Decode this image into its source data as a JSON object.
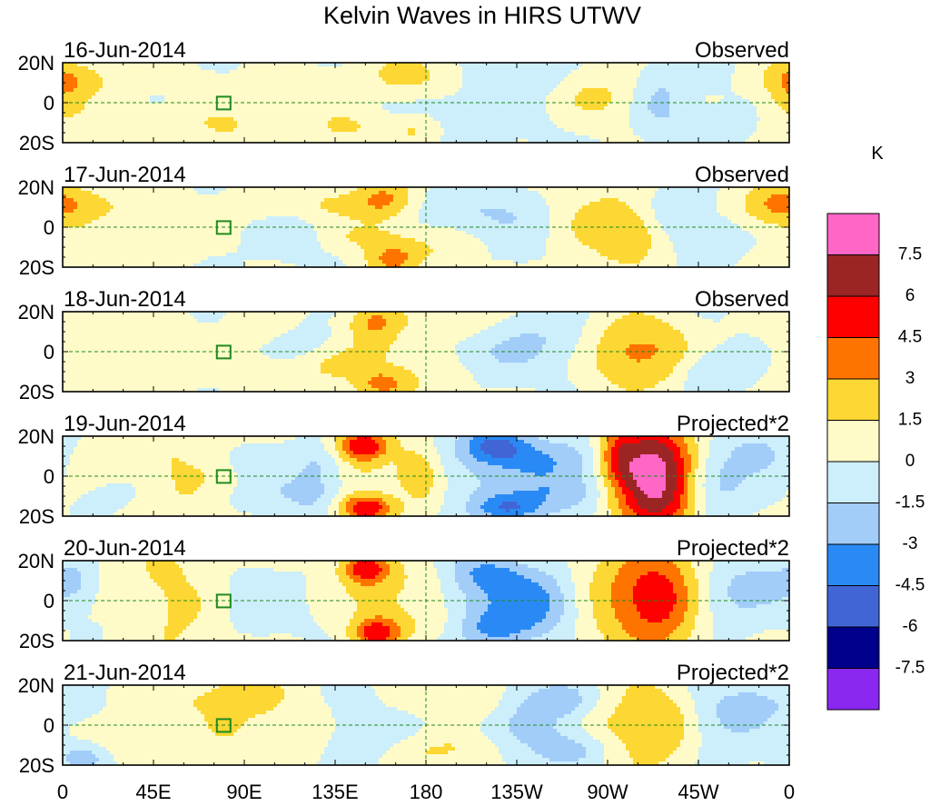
{
  "chart_data": {
    "type": "heatmap",
    "title": "Kelvin Waves in HIRS UTWV",
    "unit_label": "K",
    "x_ticks": [
      "0",
      "45E",
      "90E",
      "135E",
      "180",
      "135W",
      "90W",
      "45W",
      "0"
    ],
    "y_ticks": [
      "20N",
      "0",
      "20S"
    ],
    "y_range": [
      -20,
      20
    ],
    "x_range": [
      0,
      360
    ],
    "levels": [
      "7.5",
      "6",
      "4.5",
      "3",
      "1.5",
      "0",
      "-1.5",
      "-3",
      "-4.5",
      "-6",
      "-7.5"
    ],
    "colors": [
      "#ff66c6",
      "#9b2525",
      "#ff0000",
      "#ff7400",
      "#fdd733",
      "#fffbc8",
      "#cdeefb",
      "#a2cdf9",
      "#2a8af5",
      "#4066d6",
      "#00008c",
      "#8a28f0"
    ],
    "panels": [
      {
        "date": "16-Jun-2014",
        "label": "Observed",
        "features": [
          [
            170,
            13,
            15,
            8,
            2.2
          ],
          [
            175,
            -13,
            10,
            6,
            2.0
          ],
          [
            140,
            -12,
            14,
            6,
            1.8
          ],
          [
            115,
            5,
            14,
            7,
            1.2
          ],
          [
            360,
            10,
            12,
            8,
            2.0
          ],
          [
            80,
            -12,
            14,
            7,
            1.6
          ],
          [
            195,
            -6,
            24,
            9,
            -1.2
          ],
          [
            230,
            12,
            18,
            6,
            -1.0
          ],
          [
            240,
            2,
            16,
            12,
            -0.8
          ],
          [
            262,
            3,
            22,
            10,
            2.0
          ],
          [
            295,
            0,
            10,
            10,
            -2.2
          ],
          [
            312,
            15,
            12,
            7,
            -1.0
          ],
          [
            320,
            -12,
            12,
            6,
            -1.4
          ],
          [
            25,
            13,
            25,
            6,
            1.0
          ],
          [
            30,
            -10,
            22,
            7,
            0.9
          ],
          [
            0,
            0,
            8,
            18,
            1.0
          ]
        ]
      },
      {
        "date": "17-Jun-2014",
        "label": "Observed",
        "features": [
          [
            160,
            13,
            11,
            8,
            3.2
          ],
          [
            163,
            -16,
            10,
            6,
            3.0
          ],
          [
            135,
            12,
            14,
            6,
            1.6
          ],
          [
            150,
            -5,
            16,
            5,
            1.4
          ],
          [
            185,
            -10,
            16,
            7,
            1.2
          ],
          [
            200,
            8,
            22,
            8,
            -1.4
          ],
          [
            235,
            0,
            18,
            13,
            -1.3
          ],
          [
            262,
            2,
            22,
            15,
            2.2
          ],
          [
            282,
            -4,
            10,
            10,
            2.0
          ],
          [
            300,
            8,
            12,
            9,
            -1.4
          ],
          [
            320,
            -5,
            12,
            8,
            -1.2
          ],
          [
            348,
            10,
            12,
            8,
            1.8
          ],
          [
            360,
            12,
            10,
            8,
            1.6
          ],
          [
            20,
            12,
            22,
            8,
            1.4
          ],
          [
            25,
            -12,
            22,
            7,
            1.2
          ],
          [
            100,
            14,
            12,
            7,
            1.0
          ],
          [
            115,
            -5,
            12,
            7,
            -1.0
          ]
        ]
      },
      {
        "date": "18-Jun-2014",
        "label": "Observed",
        "features": [
          [
            155,
            14,
            10,
            7,
            3.2
          ],
          [
            158,
            -16,
            10,
            6,
            3.0
          ],
          [
            135,
            -8,
            12,
            6,
            1.6
          ],
          [
            160,
            0,
            18,
            5,
            1.2
          ],
          [
            195,
            15,
            18,
            7,
            1.4
          ],
          [
            185,
            -12,
            18,
            8,
            1.3
          ],
          [
            210,
            -2,
            20,
            10,
            -1.4
          ],
          [
            240,
            8,
            18,
            10,
            -1.2
          ],
          [
            280,
            0,
            14,
            14,
            3.2
          ],
          [
            300,
            0,
            10,
            12,
            1.6
          ],
          [
            322,
            -10,
            12,
            7,
            -1.6
          ],
          [
            20,
            10,
            20,
            8,
            1.3
          ],
          [
            30,
            -10,
            22,
            7,
            1.2
          ],
          [
            100,
            14,
            10,
            7,
            1.4
          ],
          [
            100,
            -14,
            12,
            7,
            1.4
          ],
          [
            120,
            5,
            12,
            6,
            -1.0
          ]
        ]
      },
      {
        "date": "19-Jun-2014",
        "label": "Projected*2",
        "features": [
          [
            148,
            15,
            10,
            6,
            6.2
          ],
          [
            150,
            -16,
            10,
            5,
            6.0
          ],
          [
            155,
            0,
            22,
            6,
            1.6
          ],
          [
            130,
            6,
            10,
            8,
            -1.8
          ],
          [
            125,
            -8,
            10,
            8,
            -1.6
          ],
          [
            175,
            6,
            8,
            8,
            2.0
          ],
          [
            178,
            -6,
            8,
            8,
            2.0
          ],
          [
            215,
            15,
            12,
            6,
            -5.0
          ],
          [
            220,
            -16,
            12,
            5,
            -4.4
          ],
          [
            200,
            0,
            30,
            9,
            -1.6
          ],
          [
            245,
            8,
            16,
            7,
            -2.4
          ],
          [
            248,
            -8,
            16,
            7,
            -2.4
          ],
          [
            275,
            10,
            6,
            9,
            2.6
          ],
          [
            290,
            14,
            14,
            10,
            5.3
          ],
          [
            292,
            -14,
            14,
            10,
            5.4
          ],
          [
            288,
            0,
            12,
            8,
            4.4
          ],
          [
            305,
            0,
            10,
            16,
            2.6
          ],
          [
            320,
            -3,
            14,
            12,
            -2.4
          ],
          [
            345,
            12,
            10,
            7,
            -2.0
          ],
          [
            65,
            0,
            30,
            20,
            2.4
          ],
          [
            90,
            8,
            20,
            8,
            -2.0
          ],
          [
            95,
            -10,
            20,
            8,
            -2.0
          ],
          [
            30,
            -8,
            14,
            8,
            -1.4
          ]
        ]
      },
      {
        "date": "20-Jun-2014",
        "label": "Projected*2",
        "features": [
          [
            150,
            16,
            9,
            6,
            5.5
          ],
          [
            155,
            -16,
            9,
            6,
            5.2
          ],
          [
            155,
            0,
            16,
            6,
            1.2
          ],
          [
            175,
            8,
            16,
            8,
            1.6
          ],
          [
            178,
            -8,
            16,
            8,
            1.6
          ],
          [
            210,
            14,
            14,
            7,
            -3.2
          ],
          [
            215,
            -14,
            14,
            7,
            -3.4
          ],
          [
            200,
            0,
            26,
            8,
            -1.8
          ],
          [
            235,
            6,
            14,
            8,
            -2.0
          ],
          [
            238,
            -6,
            14,
            8,
            -2.0
          ],
          [
            288,
            2,
            22,
            20,
            3.8
          ],
          [
            300,
            0,
            14,
            16,
            2.6
          ],
          [
            320,
            0,
            14,
            14,
            -2.2
          ],
          [
            345,
            8,
            12,
            9,
            -1.8
          ],
          [
            60,
            0,
            28,
            20,
            2.6
          ],
          [
            85,
            8,
            18,
            9,
            -1.6
          ],
          [
            90,
            -8,
            18,
            9,
            -1.6
          ],
          [
            5,
            10,
            8,
            8,
            -2.0
          ],
          [
            30,
            -5,
            16,
            10,
            -1.2
          ]
        ]
      },
      {
        "date": "21-Jun-2014",
        "label": "Projected*2",
        "features": [
          [
            105,
            0,
            30,
            20,
            2.0
          ],
          [
            90,
            15,
            14,
            6,
            1.6
          ],
          [
            140,
            0,
            30,
            18,
            -1.6
          ],
          [
            170,
            14,
            12,
            7,
            1.2
          ],
          [
            175,
            -14,
            12,
            7,
            1.2
          ],
          [
            200,
            12,
            16,
            7,
            1.8
          ],
          [
            198,
            -12,
            16,
            7,
            1.6
          ],
          [
            230,
            0,
            18,
            14,
            -1.6
          ],
          [
            250,
            12,
            14,
            7,
            -2.4
          ],
          [
            255,
            -12,
            14,
            7,
            -2.4
          ],
          [
            280,
            0,
            20,
            18,
            2.4
          ],
          [
            300,
            0,
            10,
            12,
            1.6
          ],
          [
            325,
            4,
            14,
            13,
            -1.8
          ],
          [
            345,
            10,
            10,
            8,
            -1.4
          ],
          [
            40,
            12,
            20,
            7,
            1.2
          ],
          [
            40,
            -12,
            20,
            7,
            1.2
          ],
          [
            10,
            -16,
            10,
            5,
            -2.4
          ],
          [
            10,
            12,
            10,
            6,
            -1.6
          ]
        ]
      }
    ]
  }
}
